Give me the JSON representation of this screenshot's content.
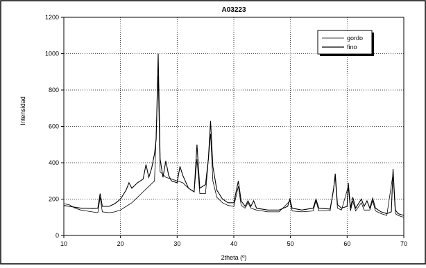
{
  "chart_data": {
    "type": "line",
    "title": "A03223",
    "xlabel": "2theta (º)",
    "ylabel": "Intensidad",
    "xlim": [
      10,
      70
    ],
    "ylim": [
      0,
      1200
    ],
    "xticks": [
      10,
      20,
      30,
      40,
      50,
      60,
      70
    ],
    "yticks": [
      0,
      200,
      400,
      600,
      800,
      1000,
      1200
    ],
    "x_tick_labels": [
      "10",
      "20",
      "30",
      "40",
      "50",
      "60",
      "70"
    ],
    "y_tick_labels": [
      "0",
      "200",
      "400",
      "600",
      "800",
      "1000",
      "1200"
    ],
    "grid": true,
    "grid_style": "dotted",
    "legend_position": "top-right",
    "legend_entries": [
      "gordo",
      "fino"
    ],
    "series": [
      {
        "name": "gordo",
        "color": "#000000",
        "points": [
          [
            10,
            165
          ],
          [
            11,
            160
          ],
          [
            12,
            155
          ],
          [
            13,
            150
          ],
          [
            14,
            150
          ],
          [
            15,
            148
          ],
          [
            16,
            150
          ],
          [
            16.4,
            230
          ],
          [
            16.8,
            160
          ],
          [
            18,
            160
          ],
          [
            19,
            175
          ],
          [
            20,
            200
          ],
          [
            21,
            250
          ],
          [
            21.5,
            290
          ],
          [
            22,
            260
          ],
          [
            23,
            290
          ],
          [
            24,
            310
          ],
          [
            24.5,
            390
          ],
          [
            25,
            320
          ],
          [
            25.5,
            370
          ],
          [
            26,
            450
          ],
          [
            26.3,
            530
          ],
          [
            26.65,
            1000
          ],
          [
            27,
            420
          ],
          [
            27.5,
            320
          ],
          [
            28,
            410
          ],
          [
            28.5,
            330
          ],
          [
            29,
            300
          ],
          [
            30,
            290
          ],
          [
            30.5,
            380
          ],
          [
            31,
            330
          ],
          [
            32,
            260
          ],
          [
            33,
            240
          ],
          [
            33.5,
            500
          ],
          [
            34,
            260
          ],
          [
            35,
            280
          ],
          [
            35.5,
            420
          ],
          [
            35.9,
            630
          ],
          [
            36.3,
            380
          ],
          [
            37,
            250
          ],
          [
            38,
            200
          ],
          [
            39,
            180
          ],
          [
            40,
            180
          ],
          [
            40.8,
            300
          ],
          [
            41.3,
            190
          ],
          [
            42,
            160
          ],
          [
            42.5,
            190
          ],
          [
            43,
            160
          ],
          [
            43.5,
            190
          ],
          [
            44,
            150
          ],
          [
            46,
            140
          ],
          [
            48,
            140
          ],
          [
            49.5,
            160
          ],
          [
            49.9,
            200
          ],
          [
            50.3,
            150
          ],
          [
            52,
            140
          ],
          [
            54,
            150
          ],
          [
            54.5,
            200
          ],
          [
            55,
            150
          ],
          [
            57,
            145
          ],
          [
            57.6,
            250
          ],
          [
            57.9,
            340
          ],
          [
            58.3,
            170
          ],
          [
            59,
            150
          ],
          [
            60,
            160
          ],
          [
            60.2,
            290
          ],
          [
            60.6,
            150
          ],
          [
            61,
            210
          ],
          [
            61.5,
            150
          ],
          [
            62.5,
            200
          ],
          [
            63,
            160
          ],
          [
            63.5,
            190
          ],
          [
            64,
            150
          ],
          [
            64.5,
            205
          ],
          [
            65,
            150
          ],
          [
            66,
            130
          ],
          [
            67,
            120
          ],
          [
            67.8,
            130
          ],
          [
            68.1,
            365
          ],
          [
            68.5,
            140
          ],
          [
            69,
            120
          ],
          [
            70,
            110
          ]
        ]
      },
      {
        "name": "fino",
        "color": "#000000",
        "points": [
          [
            10,
            175
          ],
          [
            11,
            168
          ],
          [
            12,
            150
          ],
          [
            13,
            140
          ],
          [
            14,
            135
          ],
          [
            15,
            130
          ],
          [
            16,
            125
          ],
          [
            16.4,
            210
          ],
          [
            16.8,
            130
          ],
          [
            18,
            125
          ],
          [
            19,
            130
          ],
          [
            20,
            140
          ],
          [
            21,
            160
          ],
          [
            22,
            180
          ],
          [
            23,
            210
          ],
          [
            24,
            240
          ],
          [
            25,
            270
          ],
          [
            26,
            300
          ],
          [
            26.65,
            880
          ],
          [
            27,
            350
          ],
          [
            28,
            320
          ],
          [
            29,
            310
          ],
          [
            30,
            300
          ],
          [
            31,
            290
          ],
          [
            32,
            260
          ],
          [
            33,
            240
          ],
          [
            33.5,
            420
          ],
          [
            34,
            230
          ],
          [
            35,
            230
          ],
          [
            35.9,
            560
          ],
          [
            36.3,
            300
          ],
          [
            37,
            210
          ],
          [
            38,
            180
          ],
          [
            39,
            165
          ],
          [
            40,
            160
          ],
          [
            40.8,
            270
          ],
          [
            41.3,
            165
          ],
          [
            42,
            150
          ],
          [
            42.5,
            180
          ],
          [
            43,
            150
          ],
          [
            44,
            140
          ],
          [
            46,
            130
          ],
          [
            48,
            130
          ],
          [
            49.9,
            190
          ],
          [
            50.3,
            135
          ],
          [
            52,
            130
          ],
          [
            54,
            135
          ],
          [
            54.5,
            190
          ],
          [
            55,
            135
          ],
          [
            57,
            135
          ],
          [
            57.9,
            320
          ],
          [
            58.3,
            150
          ],
          [
            59,
            140
          ],
          [
            60.2,
            270
          ],
          [
            60.6,
            135
          ],
          [
            61,
            190
          ],
          [
            61.5,
            135
          ],
          [
            62.5,
            180
          ],
          [
            63,
            140
          ],
          [
            64,
            140
          ],
          [
            64.5,
            190
          ],
          [
            65,
            135
          ],
          [
            66,
            120
          ],
          [
            67,
            110
          ],
          [
            68.1,
            340
          ],
          [
            68.5,
            120
          ],
          [
            69,
            110
          ],
          [
            70,
            100
          ]
        ]
      }
    ]
  }
}
